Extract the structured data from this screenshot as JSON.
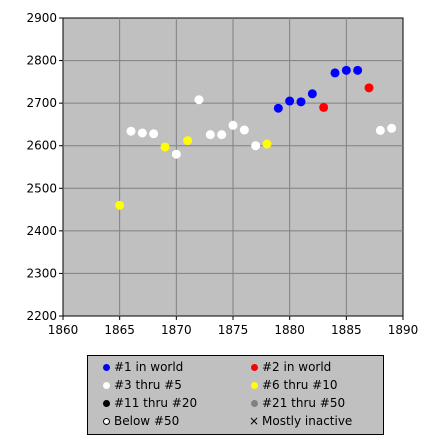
{
  "chart_data": {
    "type": "scatter",
    "title": "",
    "xlabel": "",
    "ylabel": "",
    "xlim": [
      1860,
      1890
    ],
    "ylim": [
      2200,
      2900
    ],
    "xticks": [
      1860,
      1865,
      1870,
      1875,
      1880,
      1885,
      1890
    ],
    "yticks": [
      2200,
      2300,
      2400,
      2500,
      2600,
      2700,
      2800,
      2900
    ],
    "grid": true,
    "legend_position": "bottom",
    "colors": {
      "plot_background": "#c0c0c0",
      "grid": "#808080",
      "blue": "#0000ff",
      "red": "#ff0000",
      "white": "#ffffff",
      "yellow": "#ffff00",
      "black": "#000000",
      "gray": "#808080"
    },
    "series": [
      {
        "name": "#1 in world",
        "color": "#0000ff",
        "marker": "dot",
        "points": [
          [
            1879,
            2688
          ],
          [
            1880,
            2705
          ],
          [
            1881,
            2703
          ],
          [
            1882,
            2722
          ],
          [
            1884,
            2771
          ],
          [
            1885,
            2777
          ],
          [
            1886,
            2777
          ]
        ]
      },
      {
        "name": "#2 in world",
        "color": "#ff0000",
        "marker": "dot",
        "points": [
          [
            1883,
            2690
          ],
          [
            1887,
            2736
          ]
        ]
      },
      {
        "name": "#3 thru #5",
        "color": "#ffffff",
        "marker": "dot",
        "points": [
          [
            1866,
            2634
          ],
          [
            1867,
            2630
          ],
          [
            1868,
            2628
          ],
          [
            1870,
            2580
          ],
          [
            1872,
            2708
          ],
          [
            1873,
            2626
          ],
          [
            1874,
            2626
          ],
          [
            1875,
            2648
          ],
          [
            1876,
            2637
          ],
          [
            1877,
            2600
          ],
          [
            1888,
            2636
          ],
          [
            1889,
            2641
          ]
        ]
      },
      {
        "name": "#6 thru #10",
        "color": "#ffff00",
        "marker": "dot",
        "points": [
          [
            1865,
            2460
          ],
          [
            1869,
            2597
          ],
          [
            1871,
            2612
          ],
          [
            1878,
            2604
          ]
        ]
      },
      {
        "name": "#11 thru #20",
        "color": "#000000",
        "marker": "dot",
        "points": []
      },
      {
        "name": "#21 thru #50",
        "color": "#808080",
        "marker": "dot",
        "points": []
      },
      {
        "name": "Below #50",
        "color": "#ffffff",
        "marker": "ring",
        "points": []
      },
      {
        "name": "Mostly inactive",
        "color": "#000000",
        "marker": "cross",
        "points": []
      }
    ]
  }
}
